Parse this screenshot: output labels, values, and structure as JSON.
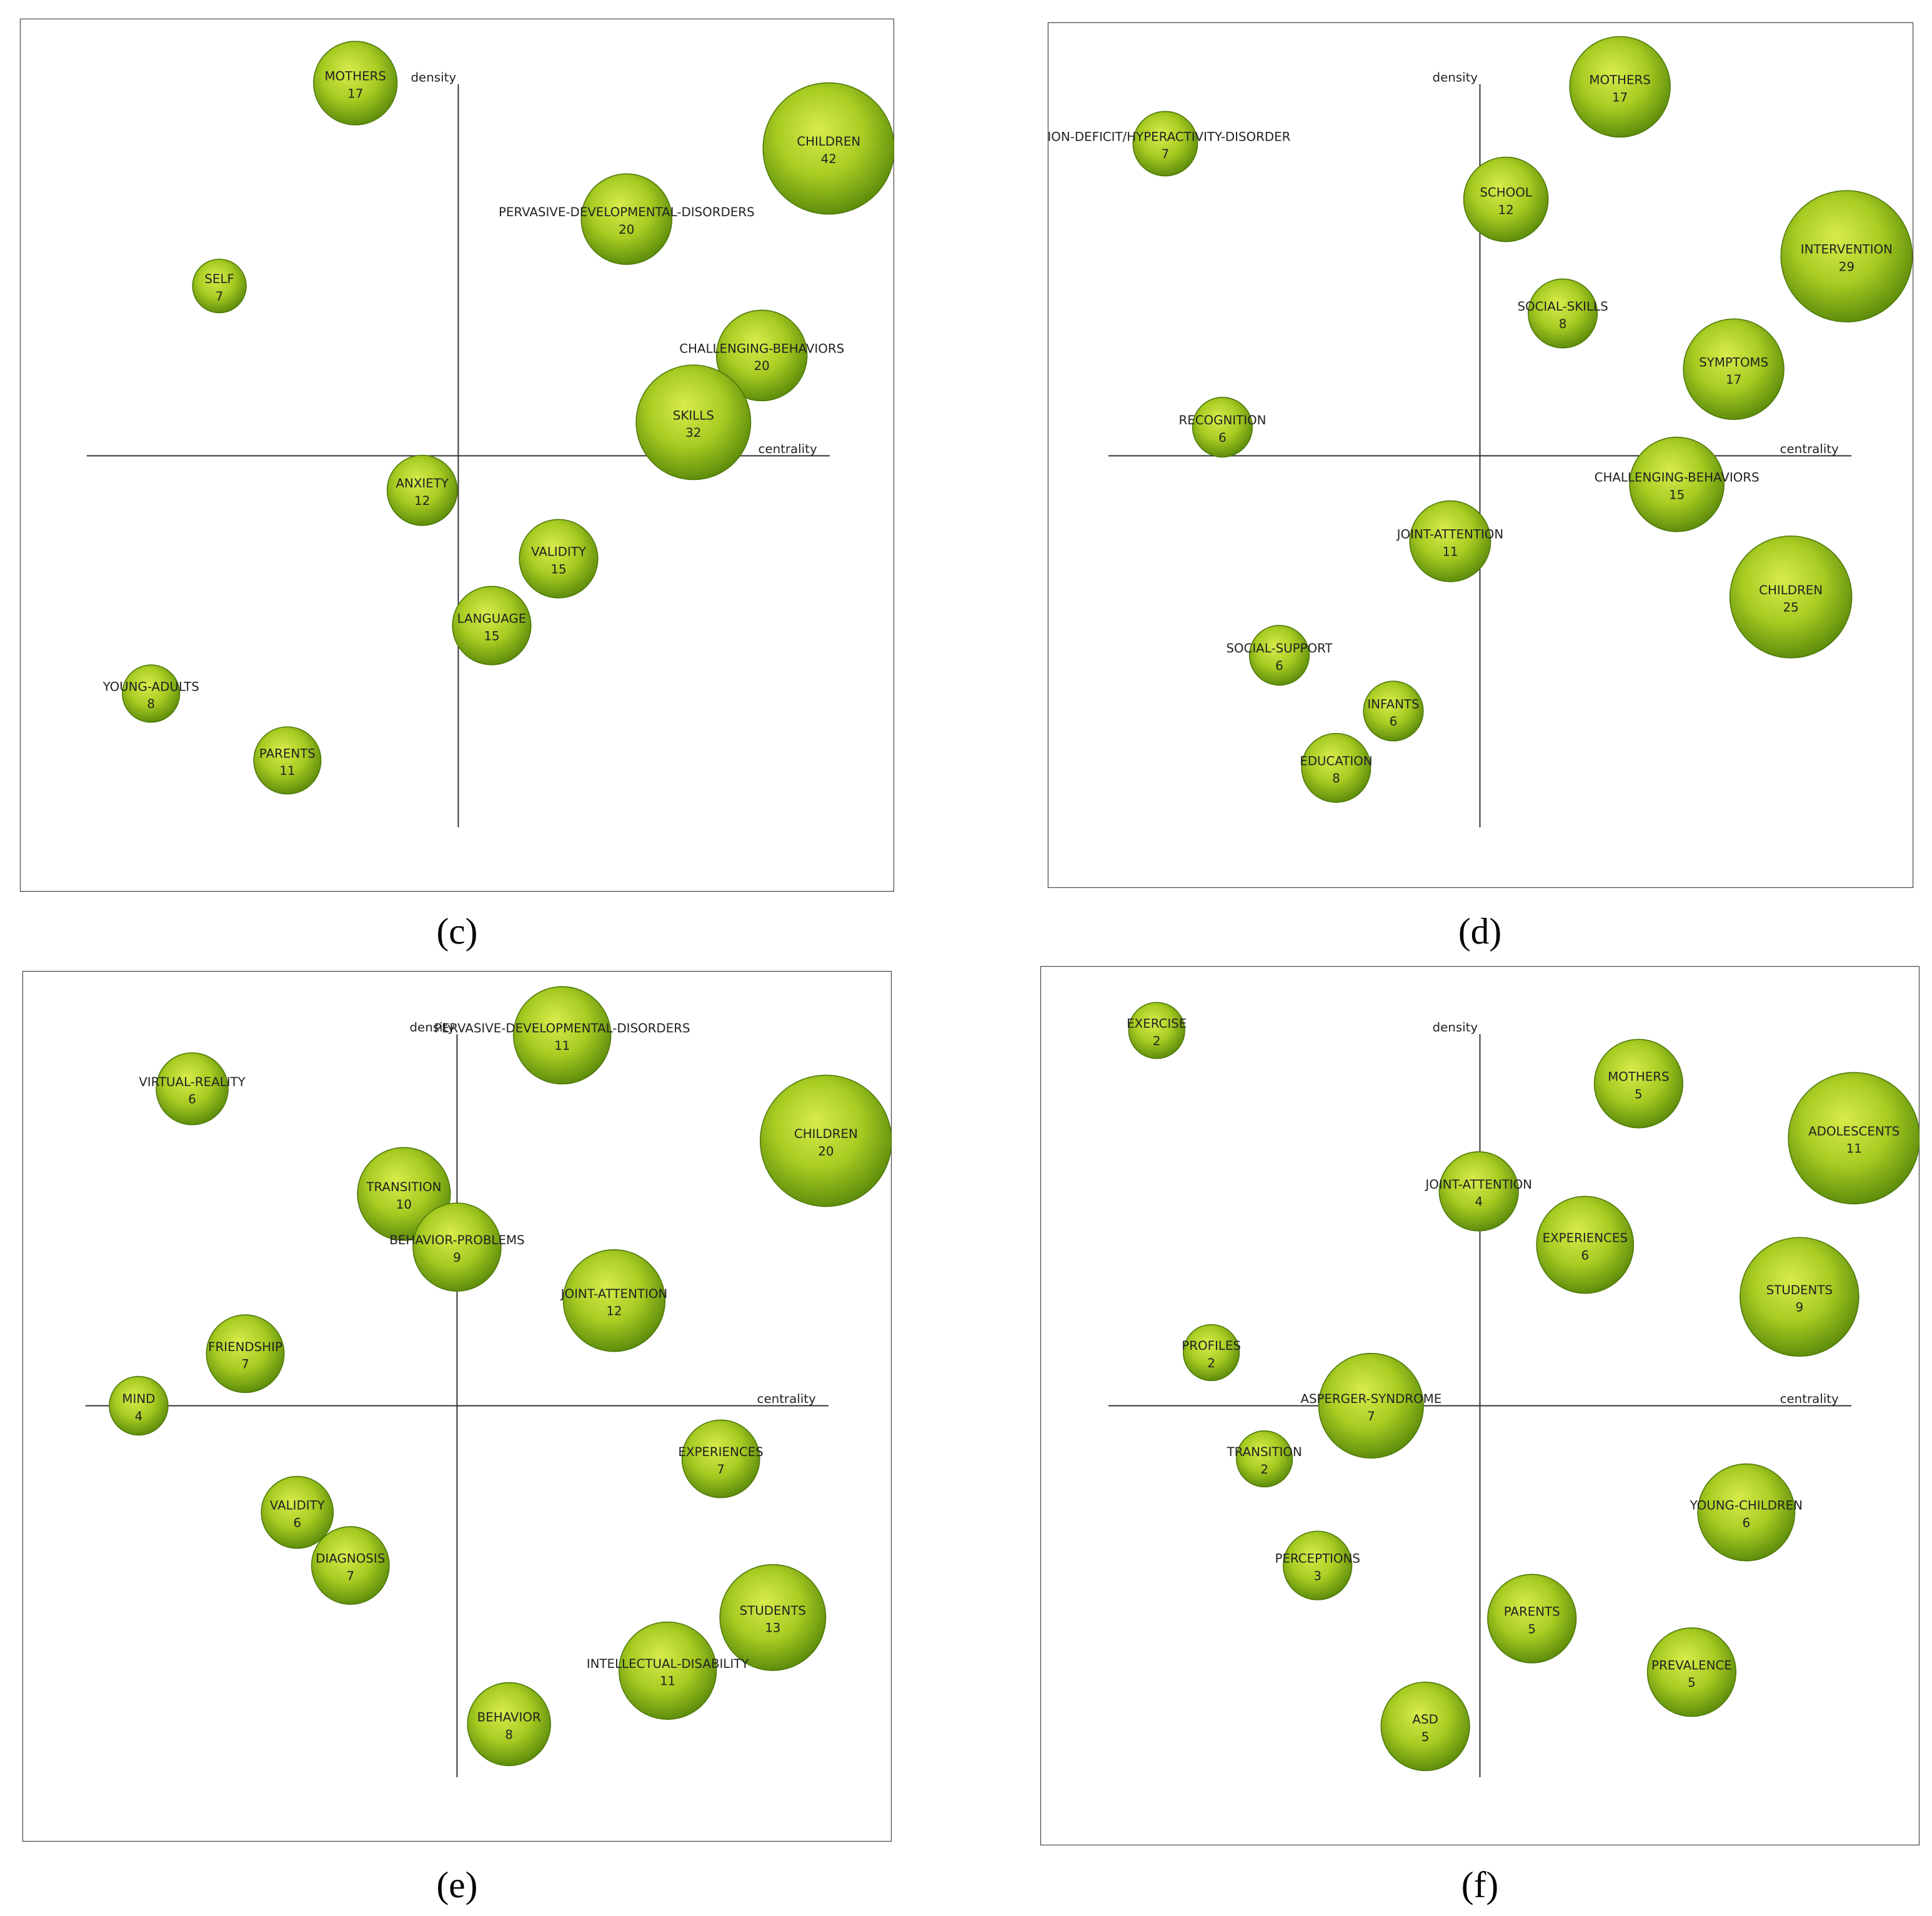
{
  "chart_data": [
    {
      "type": "bubble",
      "caption": "(c)",
      "xlabel": "centrality",
      "ylabel": "density",
      "xlim": [
        -1,
        1
      ],
      "ylim": [
        -1,
        1
      ],
      "points": [
        {
          "label": "MOTHERS",
          "value": 17,
          "x": -0.277,
          "y": 1.003
        },
        {
          "label": "CHILDREN",
          "value": 42,
          "x": 0.997,
          "y": 0.827
        },
        {
          "label": "PERVASIVE-DEVELOPMENTAL-DISORDERS",
          "value": 20,
          "x": 0.453,
          "y": 0.637
        },
        {
          "label": "SELF",
          "value": 7,
          "x": -0.643,
          "y": 0.457
        },
        {
          "label": "CHALLENGING-BEHAVIORS",
          "value": 20,
          "x": 0.817,
          "y": 0.27
        },
        {
          "label": "SKILLS",
          "value": 32,
          "x": 0.633,
          "y": 0.09
        },
        {
          "label": "ANXIETY",
          "value": 12,
          "x": -0.097,
          "y": -0.093
        },
        {
          "label": "VALIDITY",
          "value": 15,
          "x": 0.27,
          "y": -0.277
        },
        {
          "label": "LANGUAGE",
          "value": 15,
          "x": 0.09,
          "y": -0.457
        },
        {
          "label": "YOUNG-ADULTS",
          "value": 8,
          "x": -0.827,
          "y": -0.64
        },
        {
          "label": "PARENTS",
          "value": 11,
          "x": -0.46,
          "y": -0.82
        }
      ]
    },
    {
      "type": "bubble",
      "caption": "(d)",
      "xlabel": "centrality",
      "ylabel": "density",
      "xlim": [
        -1,
        1
      ],
      "ylim": [
        -1,
        1
      ],
      "points": [
        {
          "label": "MOTHERS",
          "value": 17,
          "x": 0.377,
          "y": 0.993
        },
        {
          "label": "TION-DEFICIT/HYPERACTIVITY-DISORDER",
          "value": 7,
          "x": -0.847,
          "y": 0.84
        },
        {
          "label": "SCHOOL",
          "value": 12,
          "x": 0.07,
          "y": 0.69
        },
        {
          "label": "INTERVENTION",
          "value": 29,
          "x": 0.987,
          "y": 0.537
        },
        {
          "label": "SOCIAL-SKILLS",
          "value": 8,
          "x": 0.223,
          "y": 0.383
        },
        {
          "label": "SYMPTOMS",
          "value": 17,
          "x": 0.683,
          "y": 0.233
        },
        {
          "label": "RECOGNITION",
          "value": 6,
          "x": -0.693,
          "y": 0.077
        },
        {
          "label": "CHALLENGING-BEHAVIORS",
          "value": 15,
          "x": 0.53,
          "y": -0.077
        },
        {
          "label": "JOINT-ATTENTION",
          "value": 11,
          "x": -0.08,
          "y": -0.23
        },
        {
          "label": "CHILDREN",
          "value": 25,
          "x": 0.837,
          "y": -0.38
        },
        {
          "label": "SOCIAL-SUPPORT",
          "value": 6,
          "x": -0.54,
          "y": -0.537
        },
        {
          "label": "INFANTS",
          "value": 6,
          "x": -0.233,
          "y": -0.687
        },
        {
          "label": "EDUCATION",
          "value": 8,
          "x": -0.387,
          "y": -0.84
        }
      ]
    },
    {
      "type": "bubble",
      "caption": "(e)",
      "xlabel": "centrality",
      "ylabel": "density",
      "xlim": [
        -1,
        1
      ],
      "ylim": [
        -1,
        1
      ],
      "points": [
        {
          "label": "PERVASIVE-DEVELOPMENTAL-DISORDERS",
          "value": 11,
          "x": 0.283,
          "y": 0.997
        },
        {
          "label": "VIRTUAL-REALITY",
          "value": 6,
          "x": -0.713,
          "y": 0.853
        },
        {
          "label": "CHILDREN",
          "value": 20,
          "x": 0.993,
          "y": 0.713
        },
        {
          "label": "TRANSITION",
          "value": 10,
          "x": -0.143,
          "y": 0.57
        },
        {
          "label": "BEHAVIOR-PROBLEMS",
          "value": 9,
          "x": 0,
          "y": 0.427
        },
        {
          "label": "JOINT-ATTENTION",
          "value": 12,
          "x": 0.423,
          "y": 0.283
        },
        {
          "label": "FRIENDSHIP",
          "value": 7,
          "x": -0.57,
          "y": 0.14
        },
        {
          "label": "MIND",
          "value": 4,
          "x": -0.857,
          "y": 0
        },
        {
          "label": "EXPERIENCES",
          "value": 7,
          "x": 0.71,
          "y": -0.143
        },
        {
          "label": "VALIDITY",
          "value": 6,
          "x": -0.43,
          "y": -0.287
        },
        {
          "label": "DIAGNOSIS",
          "value": 7,
          "x": -0.287,
          "y": -0.43
        },
        {
          "label": "STUDENTS",
          "value": 13,
          "x": 0.85,
          "y": -0.57
        },
        {
          "label": "INTELLECTUAL-DISABILITY",
          "value": 11,
          "x": 0.567,
          "y": -0.713
        },
        {
          "label": "BEHAVIOR",
          "value": 8,
          "x": 0.14,
          "y": -0.857
        }
      ]
    },
    {
      "type": "bubble",
      "caption": "(f)",
      "xlabel": "centrality",
      "ylabel": "density",
      "xlim": [
        -1,
        1
      ],
      "ylim": [
        -1,
        1
      ],
      "points": [
        {
          "label": "EXERCISE",
          "value": 2,
          "x": -0.87,
          "y": 1.01
        },
        {
          "label": "MOTHERS",
          "value": 5,
          "x": 0.427,
          "y": 0.867
        },
        {
          "label": "ADOLESCENTS",
          "value": 11,
          "x": 1.007,
          "y": 0.72
        },
        {
          "label": "JOINT-ATTENTION",
          "value": 4,
          "x": -0.003,
          "y": 0.577
        },
        {
          "label": "EXPERIENCES",
          "value": 6,
          "x": 0.283,
          "y": 0.433
        },
        {
          "label": "STUDENTS",
          "value": 9,
          "x": 0.86,
          "y": 0.293
        },
        {
          "label": "PROFILES",
          "value": 2,
          "x": -0.723,
          "y": 0.143
        },
        {
          "label": "ASPERGER-SYNDROME",
          "value": 7,
          "x": -0.293,
          "y": 0
        },
        {
          "label": "TRANSITION",
          "value": 2,
          "x": -0.58,
          "y": -0.143
        },
        {
          "label": "YOUNG-CHILDREN",
          "value": 6,
          "x": 0.717,
          "y": -0.287
        },
        {
          "label": "PERCEPTIONS",
          "value": 3,
          "x": -0.437,
          "y": -0.43
        },
        {
          "label": "PARENTS",
          "value": 5,
          "x": 0.14,
          "y": -0.573
        },
        {
          "label": "PREVALENCE",
          "value": 5,
          "x": 0.57,
          "y": -0.717
        },
        {
          "label": "ASD",
          "value": 5,
          "x": -0.147,
          "y": -0.863
        }
      ]
    }
  ]
}
